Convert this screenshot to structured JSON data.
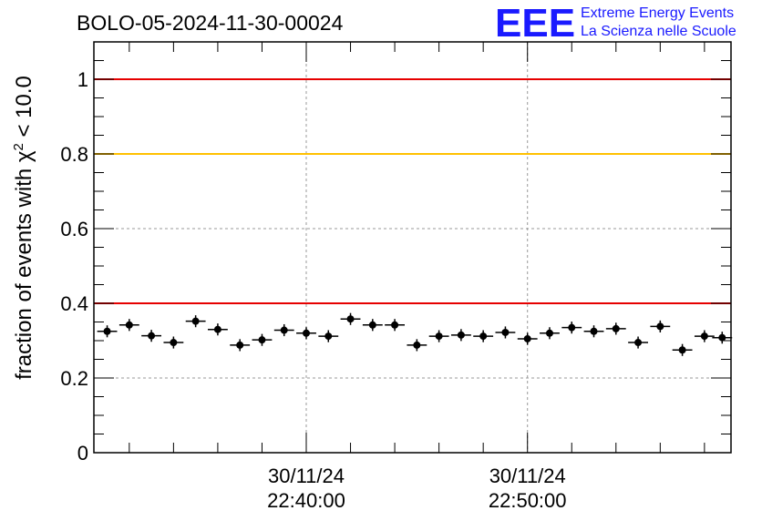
{
  "chart_data": {
    "type": "scatter",
    "title": "BOLO-05-2024-11-30-00024",
    "ylabel_prefix": "fraction of events with ",
    "ylabel_symbol": "χ",
    "ylabel_sup": "2",
    "ylabel_suffix": " < 10.0",
    "ylim": [
      0,
      1.1
    ],
    "yticks": [
      {
        "value": 0,
        "label": "0"
      },
      {
        "value": 0.2,
        "label": "0.2"
      },
      {
        "value": 0.4,
        "label": "0.4"
      },
      {
        "value": 0.6,
        "label": "0.6"
      },
      {
        "value": 0.8,
        "label": "0.8"
      },
      {
        "value": 1,
        "label": "1"
      }
    ],
    "xlim_minutes": [
      30.4,
      59.2
    ],
    "xticks": [
      {
        "value_minutes": 40,
        "date": "30/11/24",
        "time": "22:40:00"
      },
      {
        "value_minutes": 50,
        "date": "30/11/24",
        "time": "22:50:00"
      }
    ],
    "grid": true,
    "reference_lines": [
      {
        "y": 1.0,
        "color": "#e60000"
      },
      {
        "y": 0.8,
        "color": "#ffc000"
      },
      {
        "y": 0.4,
        "color": "#e60000"
      }
    ],
    "series": [
      {
        "points": [
          {
            "x": 31.0,
            "y": 0.325
          },
          {
            "x": 32.0,
            "y": 0.342
          },
          {
            "x": 33.0,
            "y": 0.313
          },
          {
            "x": 34.0,
            "y": 0.295
          },
          {
            "x": 35.0,
            "y": 0.352
          },
          {
            "x": 36.0,
            "y": 0.33
          },
          {
            "x": 37.0,
            "y": 0.288
          },
          {
            "x": 38.0,
            "y": 0.302
          },
          {
            "x": 39.0,
            "y": 0.328
          },
          {
            "x": 40.0,
            "y": 0.32
          },
          {
            "x": 41.0,
            "y": 0.312
          },
          {
            "x": 42.0,
            "y": 0.358
          },
          {
            "x": 43.0,
            "y": 0.342
          },
          {
            "x": 44.0,
            "y": 0.342
          },
          {
            "x": 45.0,
            "y": 0.288
          },
          {
            "x": 46.0,
            "y": 0.312
          },
          {
            "x": 47.0,
            "y": 0.315
          },
          {
            "x": 48.0,
            "y": 0.312
          },
          {
            "x": 49.0,
            "y": 0.322
          },
          {
            "x": 50.0,
            "y": 0.305
          },
          {
            "x": 51.0,
            "y": 0.32
          },
          {
            "x": 52.0,
            "y": 0.335
          },
          {
            "x": 53.0,
            "y": 0.325
          },
          {
            "x": 54.0,
            "y": 0.332
          },
          {
            "x": 55.0,
            "y": 0.295
          },
          {
            "x": 56.0,
            "y": 0.338
          },
          {
            "x": 57.0,
            "y": 0.275
          },
          {
            "x": 58.0,
            "y": 0.312
          },
          {
            "x": 58.8,
            "y": 0.308
          }
        ],
        "yerr": 0.016,
        "xerr_minutes": 0.45,
        "color": "#000000"
      }
    ]
  },
  "logo": {
    "mark": "EEE",
    "line1": "Extreme Energy Events",
    "line2": "La Scienza nelle Scuole",
    "color": "#1a1aff"
  }
}
